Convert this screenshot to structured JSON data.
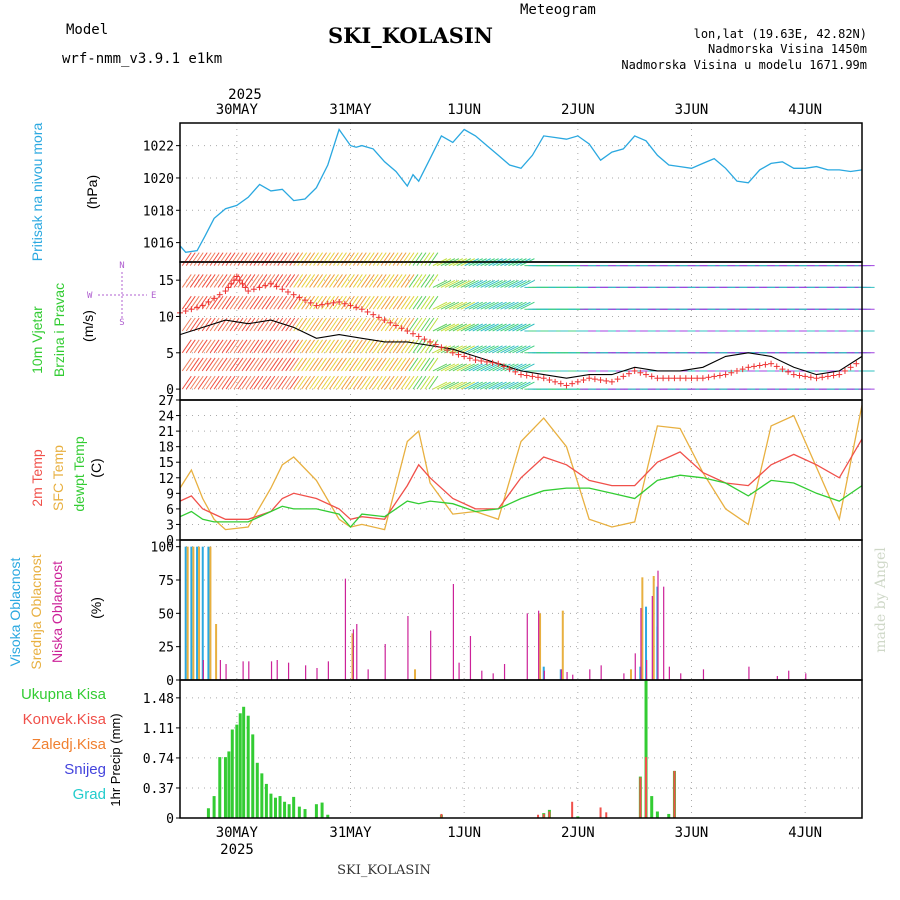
{
  "header": {
    "model_label": "Model",
    "model_name": "wrf-nmm_v3.9.1 e1km",
    "station": "SKI_KOLASIN",
    "meteogram": "Meteogram",
    "coords": "lon,lat (19.63E, 42.82N)",
    "elevation": "Nadmorska Visina 1450m",
    "model_elevation": "Nadmorska Visina u modelu 1671.99m",
    "footer_station": "SKI_KOLASIN",
    "watermark": "made by Angel",
    "year_top": "2025",
    "year_bottom": "2025"
  },
  "colors": {
    "pressure": "#2aa8e0",
    "t2m": "#f0504a",
    "sfc": "#e8b040",
    "dewpt": "#33cc33",
    "high_cloud": "#2aa8e0",
    "mid_cloud": "#e8b040",
    "low_cloud": "#cc2299",
    "total_precip": "#33cc33",
    "conv_precip": "#f0504a",
    "frz_precip": "#f08030",
    "snow": "#4444dd",
    "graupel": "#22cccc",
    "wind_speed": "#ee3333",
    "gust": "#000000",
    "label_purple": "#b060d0"
  },
  "chart_data": {
    "type": "line",
    "x_axis": {
      "unit": "days",
      "range": [
        0,
        6
      ],
      "day_ticks": [
        {
          "x": 0.5,
          "label": "30MAY"
        },
        {
          "x": 1.5,
          "label": "31MAY"
        },
        {
          "x": 2.5,
          "label": "1JUN"
        },
        {
          "x": 3.5,
          "label": "2JUN"
        },
        {
          "x": 4.5,
          "label": "3JUN"
        },
        {
          "x": 5.5,
          "label": "4JUN"
        }
      ]
    },
    "panels": {
      "pressure": {
        "ylabel": "Pritisak na nivou mora",
        "unit": "(hPa)",
        "yticks": [
          "1016",
          "1018",
          "1020",
          "1022"
        ],
        "ylim": [
          1014.8,
          1023.4
        ],
        "series": [
          {
            "name": "Pritisak na nivou mora",
            "x": [
              0,
              0.05,
              0.15,
              0.22,
              0.3,
              0.4,
              0.5,
              0.6,
              0.7,
              0.8,
              0.9,
              1.0,
              1.1,
              1.2,
              1.3,
              1.4,
              1.5,
              1.55,
              1.6,
              1.7,
              1.8,
              1.9,
              2.0,
              2.05,
              2.1,
              2.2,
              2.3,
              2.4,
              2.5,
              2.6,
              2.7,
              2.8,
              2.9,
              3.0,
              3.1,
              3.2,
              3.3,
              3.4,
              3.5,
              3.6,
              3.7,
              3.8,
              3.9,
              4.0,
              4.1,
              4.2,
              4.3,
              4.4,
              4.5,
              4.6,
              4.7,
              4.8,
              4.9,
              5.0,
              5.1,
              5.2,
              5.3,
              5.4,
              5.5,
              5.6,
              5.7,
              5.8,
              5.9,
              6.0
            ],
            "values": [
              1015.8,
              1015.4,
              1015.5,
              1016.4,
              1017.5,
              1018.1,
              1018.3,
              1018.8,
              1019.6,
              1019.2,
              1019.3,
              1018.6,
              1018.7,
              1019.4,
              1020.8,
              1023.0,
              1022.0,
              1021.9,
              1022.0,
              1021.8,
              1021.0,
              1020.4,
              1019.5,
              1020.2,
              1019.8,
              1021.2,
              1022.6,
              1022.2,
              1023.0,
              1022.6,
              1022.0,
              1021.4,
              1020.8,
              1020.6,
              1021.4,
              1022.6,
              1022.5,
              1022.4,
              1022.6,
              1022.1,
              1021.1,
              1021.6,
              1021.8,
              1022.6,
              1022.3,
              1021.4,
              1020.8,
              1020.7,
              1020.6,
              1020.9,
              1021.2,
              1020.6,
              1019.8,
              1019.7,
              1020.5,
              1020.9,
              1021.0,
              1020.6,
              1020.6,
              1020.7,
              1020.5,
              1020.5,
              1020.4,
              1020.5
            ]
          }
        ]
      },
      "wind": {
        "ylabel": "10m Vjetar",
        "ylabel2": "Brzina i Pravac",
        "unit": "(m/s)",
        "compass": [
          "N",
          "W",
          "E",
          "S"
        ],
        "yticks": [
          "0",
          "5",
          "10",
          "15"
        ],
        "ylim": [
          -1.5,
          17.5
        ],
        "series": [
          {
            "name": "Brzina",
            "x": [
              0,
              0.2,
              0.4,
              0.5,
              0.6,
              0.8,
              1.0,
              1.2,
              1.4,
              1.6,
              1.8,
              2.0,
              2.2,
              2.4,
              2.6,
              2.8,
              3.0,
              3.2,
              3.4,
              3.6,
              3.8,
              4.0,
              4.2,
              4.4,
              4.6,
              4.8,
              5.0,
              5.2,
              5.4,
              5.6,
              5.8,
              6.0
            ],
            "values": [
              10.5,
              11.5,
              13.5,
              15.5,
              13.5,
              14.5,
              13.0,
              11.5,
              12.0,
              11.0,
              9.5,
              8.0,
              6.5,
              5.0,
              4.0,
              3.5,
              2.0,
              1.5,
              0.5,
              1.5,
              1.0,
              2.5,
              1.5,
              1.5,
              1.5,
              2.0,
              3.0,
              3.5,
              2.0,
              1.5,
              2.0,
              4.0
            ]
          },
          {
            "name": "Udar",
            "x": [
              0,
              0.2,
              0.4,
              0.6,
              0.8,
              1.0,
              1.2,
              1.4,
              1.6,
              1.8,
              2.0,
              2.2,
              2.4,
              2.6,
              2.8,
              3.0,
              3.2,
              3.4,
              3.6,
              3.8,
              4.0,
              4.2,
              4.4,
              4.6,
              4.8,
              5.0,
              5.2,
              5.4,
              5.6,
              5.8,
              6.0
            ],
            "values": [
              7.5,
              8.5,
              9.5,
              9.0,
              9.5,
              8.5,
              7.0,
              7.5,
              7.0,
              6.5,
              6.5,
              6.0,
              5.5,
              4.5,
              3.5,
              2.5,
              2.0,
              1.5,
              2.0,
              2.0,
              3.0,
              2.5,
              2.5,
              3.0,
              4.5,
              5.0,
              4.5,
              3.0,
              2.0,
              2.5,
              4.5
            ]
          }
        ],
        "barb_rows": [
          0,
          2.5,
          5,
          8,
          11,
          14,
          17
        ]
      },
      "temperature": {
        "ylabel": "2m Temp",
        "ylabel2": "SFC Temp",
        "ylabel3": "dewpt Temp",
        "unit": "(C)",
        "yticks": [
          "0",
          "3",
          "6",
          "9",
          "12",
          "15",
          "18",
          "21",
          "24",
          "27"
        ],
        "ylim": [
          0,
          27
        ],
        "series": [
          {
            "name": "2m Temp",
            "x": [
              0,
              0.1,
              0.2,
              0.3,
              0.4,
              0.6,
              0.8,
              0.9,
              1.0,
              1.2,
              1.4,
              1.5,
              1.6,
              1.8,
              2.0,
              2.1,
              2.2,
              2.4,
              2.6,
              2.8,
              3.0,
              3.2,
              3.4,
              3.6,
              3.8,
              4.0,
              4.2,
              4.4,
              4.6,
              4.8,
              5.0,
              5.2,
              5.4,
              5.6,
              5.8,
              6.0
            ],
            "values": [
              7.5,
              8.5,
              6.0,
              5.0,
              4.0,
              4.0,
              5.5,
              8.0,
              9.0,
              8.0,
              6.0,
              4.0,
              4.5,
              4.0,
              10.5,
              14.5,
              12.0,
              8.0,
              6.0,
              6.0,
              12.0,
              16.0,
              14.5,
              11.5,
              10.5,
              10.5,
              15.0,
              17.0,
              13.0,
              11.0,
              10.5,
              14.5,
              16.5,
              14.5,
              12.0,
              19.5
            ]
          },
          {
            "name": "SFC Temp",
            "x": [
              0,
              0.1,
              0.2,
              0.3,
              0.4,
              0.6,
              0.8,
              0.9,
              1.0,
              1.2,
              1.4,
              1.5,
              1.6,
              1.8,
              2.0,
              2.1,
              2.2,
              2.4,
              2.6,
              2.8,
              3.0,
              3.2,
              3.4,
              3.6,
              3.8,
              4.0,
              4.2,
              4.4,
              4.6,
              4.8,
              5.0,
              5.2,
              5.4,
              5.6,
              5.8,
              6.0
            ],
            "values": [
              10.0,
              13.5,
              8.0,
              4.0,
              2.0,
              2.5,
              10.0,
              14.5,
              16.0,
              11.5,
              4.0,
              2.5,
              3.0,
              2.0,
              19.0,
              21.0,
              11.0,
              5.0,
              5.5,
              4.0,
              19.0,
              23.5,
              18.0,
              4.0,
              2.5,
              3.5,
              22.0,
              21.5,
              13.0,
              6.0,
              3.0,
              22.0,
              24.0,
              14.0,
              4.0,
              26.0
            ]
          },
          {
            "name": "dewpt Temp",
            "x": [
              0,
              0.1,
              0.2,
              0.3,
              0.4,
              0.6,
              0.8,
              0.9,
              1.0,
              1.2,
              1.4,
              1.5,
              1.6,
              1.8,
              2.0,
              2.1,
              2.2,
              2.4,
              2.6,
              2.8,
              3.0,
              3.2,
              3.4,
              3.6,
              3.8,
              4.0,
              4.2,
              4.4,
              4.6,
              4.8,
              5.0,
              5.2,
              5.4,
              5.6,
              5.8,
              6.0
            ],
            "values": [
              4.5,
              5.5,
              4.0,
              3.5,
              3.5,
              3.5,
              5.5,
              6.5,
              6.0,
              6.0,
              5.0,
              2.5,
              5.0,
              4.5,
              7.5,
              7.0,
              7.5,
              7.0,
              5.5,
              6.0,
              8.0,
              9.5,
              10.0,
              10.0,
              9.0,
              8.0,
              11.5,
              12.5,
              12.0,
              11.0,
              8.5,
              11.5,
              11.0,
              9.0,
              7.5,
              10.5
            ]
          }
        ]
      },
      "clouds": {
        "ylabel": "Visoka Oblacnost",
        "ylabel2": "Srednja Oblacnost",
        "ylabel3": "Niska Oblacnost",
        "unit": "(%)",
        "yticks": [
          "0",
          "25",
          "50",
          "75",
          "100"
        ],
        "ylim": [
          0,
          105
        ],
        "high": {
          "name": "Visoka Oblacnost",
          "x": [
            0.05,
            0.1,
            0.15,
            0.2,
            0.25,
            3.2,
            3.35,
            4.05,
            4.1,
            4.2,
            4.2
          ],
          "values": [
            100,
            100,
            100,
            100,
            100,
            10,
            8,
            10,
            55,
            40,
            70
          ]
        },
        "mid": {
          "name": "Srednja Oblacnost",
          "x": [
            0.05,
            0.1,
            0.15,
            0.25,
            0.3,
            1.5,
            2.05,
            3.15,
            3.35,
            3.95,
            4.05,
            4.15
          ],
          "values": [
            100,
            100,
            100,
            100,
            42,
            35,
            8,
            50,
            52,
            8,
            77,
            78
          ]
        },
        "low": {
          "name": "Niska Oblacnost",
          "x": [
            0.2,
            0.35,
            0.4,
            0.55,
            0.6,
            0.8,
            0.85,
            0.95,
            1.1,
            1.2,
            1.3,
            1.45,
            1.52,
            1.55,
            1.65,
            1.8,
            2.0,
            2.2,
            2.4,
            2.45,
            2.55,
            2.65,
            2.75,
            2.85,
            3.05,
            3.15,
            3.2,
            3.35,
            3.4,
            3.45,
            3.6,
            3.7,
            3.9,
            4.0,
            4.05,
            4.1,
            4.15,
            4.2,
            4.25,
            4.3,
            4.4,
            4.6,
            5.0,
            5.25,
            5.35,
            5.5
          ],
          "values": [
            15,
            15,
            12,
            14,
            14,
            14,
            15,
            13,
            11,
            9,
            14,
            76,
            38,
            42,
            8,
            27,
            48,
            37,
            72,
            13,
            33,
            7,
            5,
            12,
            50,
            52,
            7,
            8,
            6,
            4,
            8,
            11,
            5,
            20,
            54,
            15,
            63,
            82,
            70,
            10,
            5,
            8,
            10,
            3,
            7,
            5
          ]
        }
      },
      "precip": {
        "ylabel": "1hr Precip",
        "unit": "(mm)",
        "legend": [
          "Ukupna Kisa",
          "Konvek.Kisa",
          "Zaledj.Kisa",
          "Snijeg",
          "Grad"
        ],
        "yticks": [
          "0",
          "0.37",
          "0.74",
          "1.11",
          "1.48"
        ],
        "ylim": [
          0,
          1.7
        ],
        "total": {
          "name": "Ukupna Kisa",
          "x": [
            0.25,
            0.3,
            0.35,
            0.4,
            0.43,
            0.46,
            0.5,
            0.53,
            0.56,
            0.6,
            0.64,
            0.68,
            0.72,
            0.76,
            0.8,
            0.84,
            0.88,
            0.92,
            0.96,
            1.0,
            1.05,
            1.1,
            1.2,
            1.25,
            1.3,
            2.3,
            3.2,
            3.25,
            3.5,
            4.05,
            4.1,
            4.15,
            4.2,
            4.3,
            4.35
          ],
          "values": [
            0.12,
            0.27,
            0.75,
            0.75,
            0.82,
            1.09,
            1.15,
            1.29,
            1.37,
            1.26,
            1.03,
            0.68,
            0.55,
            0.42,
            0.3,
            0.25,
            0.27,
            0.2,
            0.17,
            0.26,
            0.14,
            0.11,
            0.17,
            0.19,
            0.04,
            0.04,
            0.06,
            0.1,
            0.02,
            0.51,
            1.7,
            0.27,
            0.08,
            0.05,
            0.58
          ]
        },
        "conv": {
          "name": "Konvek.Kisa",
          "x": [
            2.3,
            3.15,
            3.2,
            3.25,
            3.45,
            3.7,
            3.75,
            4.05,
            4.1,
            4.35
          ],
          "values": [
            0.05,
            0.04,
            0.05,
            0.08,
            0.2,
            0.13,
            0.07,
            0.5,
            0.75,
            0.58
          ]
        }
      }
    }
  }
}
